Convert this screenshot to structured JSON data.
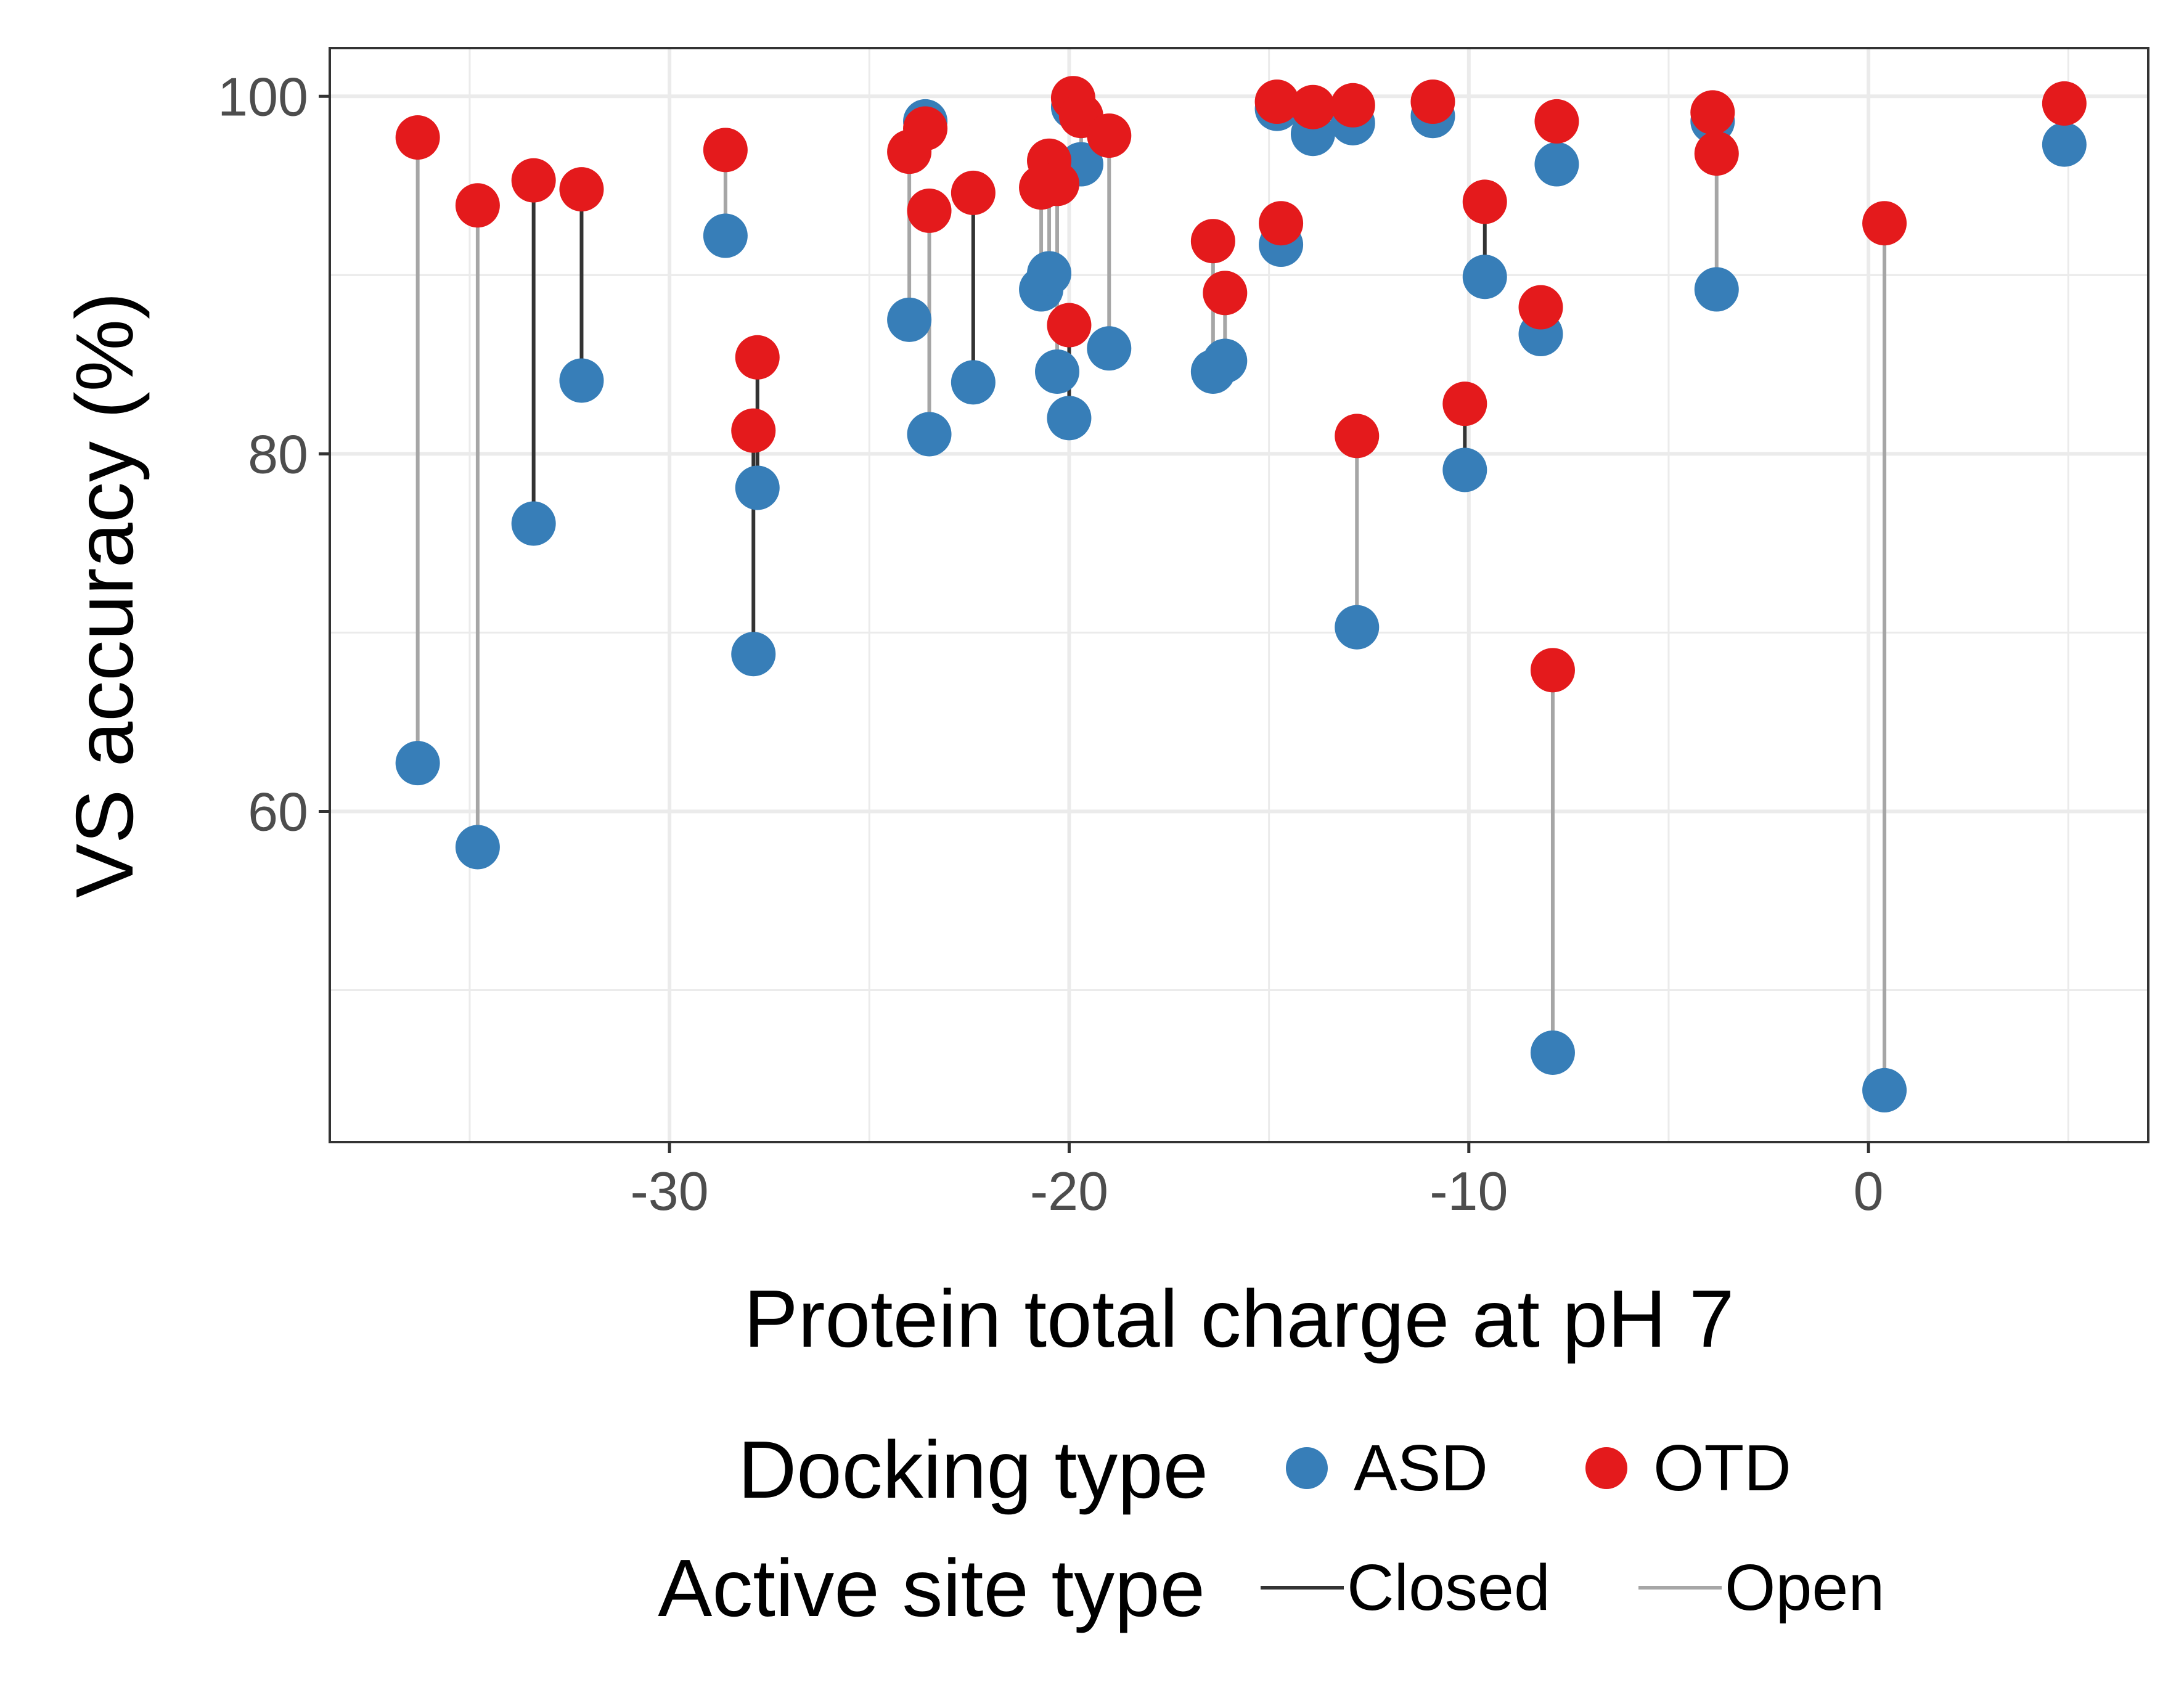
{
  "chart_data": {
    "type": "scatter",
    "title": "",
    "xlabel": "Protein total charge at pH 7",
    "ylabel": "VS accuracy (%)",
    "xlim": [
      -38.5,
      7
    ],
    "ylim": [
      41.5,
      102.7
    ],
    "x_ticks": [
      -30,
      -20,
      -10,
      0
    ],
    "x_tick_labels": [
      "-30",
      "-20",
      "-10",
      "0"
    ],
    "x_minor_ticks": [
      -35,
      -25,
      -15,
      -5,
      5
    ],
    "y_ticks": [
      60,
      80,
      100
    ],
    "y_tick_labels": [
      "60",
      "80",
      "100"
    ],
    "y_minor_ticks": [
      50,
      70,
      90
    ],
    "grid": true,
    "legend_position": "bottom",
    "legend": {
      "docking_title": "Docking type",
      "docking_items": [
        {
          "label": "ASD",
          "color": "#377eb8"
        },
        {
          "label": "OTD",
          "color": "#e41a1c"
        }
      ],
      "site_title": "Active site type",
      "site_items": [
        {
          "label": "Closed",
          "color": "#333333"
        },
        {
          "label": "Open",
          "color": "#a6a6a6"
        }
      ]
    },
    "colors": {
      "ASD": "#377eb8",
      "OTD": "#e41a1c",
      "Closed": "#333333",
      "Open": "#a6a6a6",
      "grid": "#ebebeb",
      "panel_border": "#333333"
    },
    "pairs": [
      {
        "x": -36.3,
        "asd": 62.7,
        "otd": 97.7,
        "site": "Open"
      },
      {
        "x": -34.8,
        "asd": 58.0,
        "otd": 93.9,
        "site": "Open"
      },
      {
        "x": -33.4,
        "asd": 76.1,
        "otd": 95.3,
        "site": "Closed"
      },
      {
        "x": -32.2,
        "asd": 84.1,
        "otd": 94.8,
        "site": "Closed"
      },
      {
        "x": -28.6,
        "asd": 92.2,
        "otd": 97.0,
        "site": "Open"
      },
      {
        "x": -27.9,
        "asd": 68.8,
        "otd": 81.3,
        "site": "Closed"
      },
      {
        "x": -27.8,
        "asd": 78.1,
        "otd": 85.4,
        "site": "Closed"
      },
      {
        "x": -24.0,
        "asd": 87.5,
        "otd": 96.9,
        "site": "Open"
      },
      {
        "x": -23.6,
        "asd": 98.6,
        "otd": 98.2,
        "site": "Closed"
      },
      {
        "x": -23.5,
        "asd": 81.1,
        "otd": 93.6,
        "site": "Open"
      },
      {
        "x": -22.4,
        "asd": 84.0,
        "otd": 94.6,
        "site": "Closed"
      },
      {
        "x": -20.7,
        "asd": 89.2,
        "otd": 94.9,
        "site": "Open"
      },
      {
        "x": -20.5,
        "asd": 90.1,
        "otd": 96.4,
        "site": "Open"
      },
      {
        "x": -20.3,
        "asd": 84.6,
        "otd": 95.1,
        "site": "Open"
      },
      {
        "x": -20.0,
        "asd": 82.0,
        "otd": 87.2,
        "site": "Closed"
      },
      {
        "x": -19.9,
        "asd": 99.4,
        "otd": 99.9,
        "site": "Closed"
      },
      {
        "x": -19.7,
        "asd": 96.2,
        "otd": 98.9,
        "site": "Open"
      },
      {
        "x": -19.0,
        "asd": 85.9,
        "otd": 97.8,
        "site": "Open"
      },
      {
        "x": -16.4,
        "asd": 84.6,
        "otd": 91.9,
        "site": "Open"
      },
      {
        "x": -16.1,
        "asd": 85.2,
        "otd": 89.0,
        "site": "Open"
      },
      {
        "x": -14.7,
        "asd": 91.7,
        "otd": 92.9,
        "site": "Closed"
      },
      {
        "x": -14.8,
        "asd": 99.3,
        "otd": 99.7,
        "site": "Closed"
      },
      {
        "x": -13.9,
        "asd": 97.9,
        "otd": 99.4,
        "site": "Closed"
      },
      {
        "x": -12.9,
        "asd": 98.5,
        "otd": 99.5,
        "site": "Closed"
      },
      {
        "x": -12.8,
        "asd": 70.3,
        "otd": 81.0,
        "site": "Open"
      },
      {
        "x": -10.9,
        "asd": 98.9,
        "otd": 99.7,
        "site": "Closed"
      },
      {
        "x": -10.1,
        "asd": 79.1,
        "otd": 82.8,
        "site": "Closed"
      },
      {
        "x": -9.6,
        "asd": 89.9,
        "otd": 94.1,
        "site": "Closed"
      },
      {
        "x": -8.2,
        "asd": 86.7,
        "otd": 88.2,
        "site": "Closed"
      },
      {
        "x": -7.9,
        "asd": 46.5,
        "otd": 67.9,
        "site": "Open"
      },
      {
        "x": -7.8,
        "asd": 96.2,
        "otd": 98.6,
        "site": "Closed"
      },
      {
        "x": -3.9,
        "asd": 98.6,
        "otd": 99.1,
        "site": "Closed"
      },
      {
        "x": -3.8,
        "asd": 89.2,
        "otd": 96.8,
        "site": "Open"
      },
      {
        "x": 0.4,
        "asd": 44.4,
        "otd": 92.9,
        "site": "Open"
      },
      {
        "x": 4.9,
        "asd": 97.3,
        "otd": 99.6,
        "site": "Closed"
      }
    ]
  }
}
